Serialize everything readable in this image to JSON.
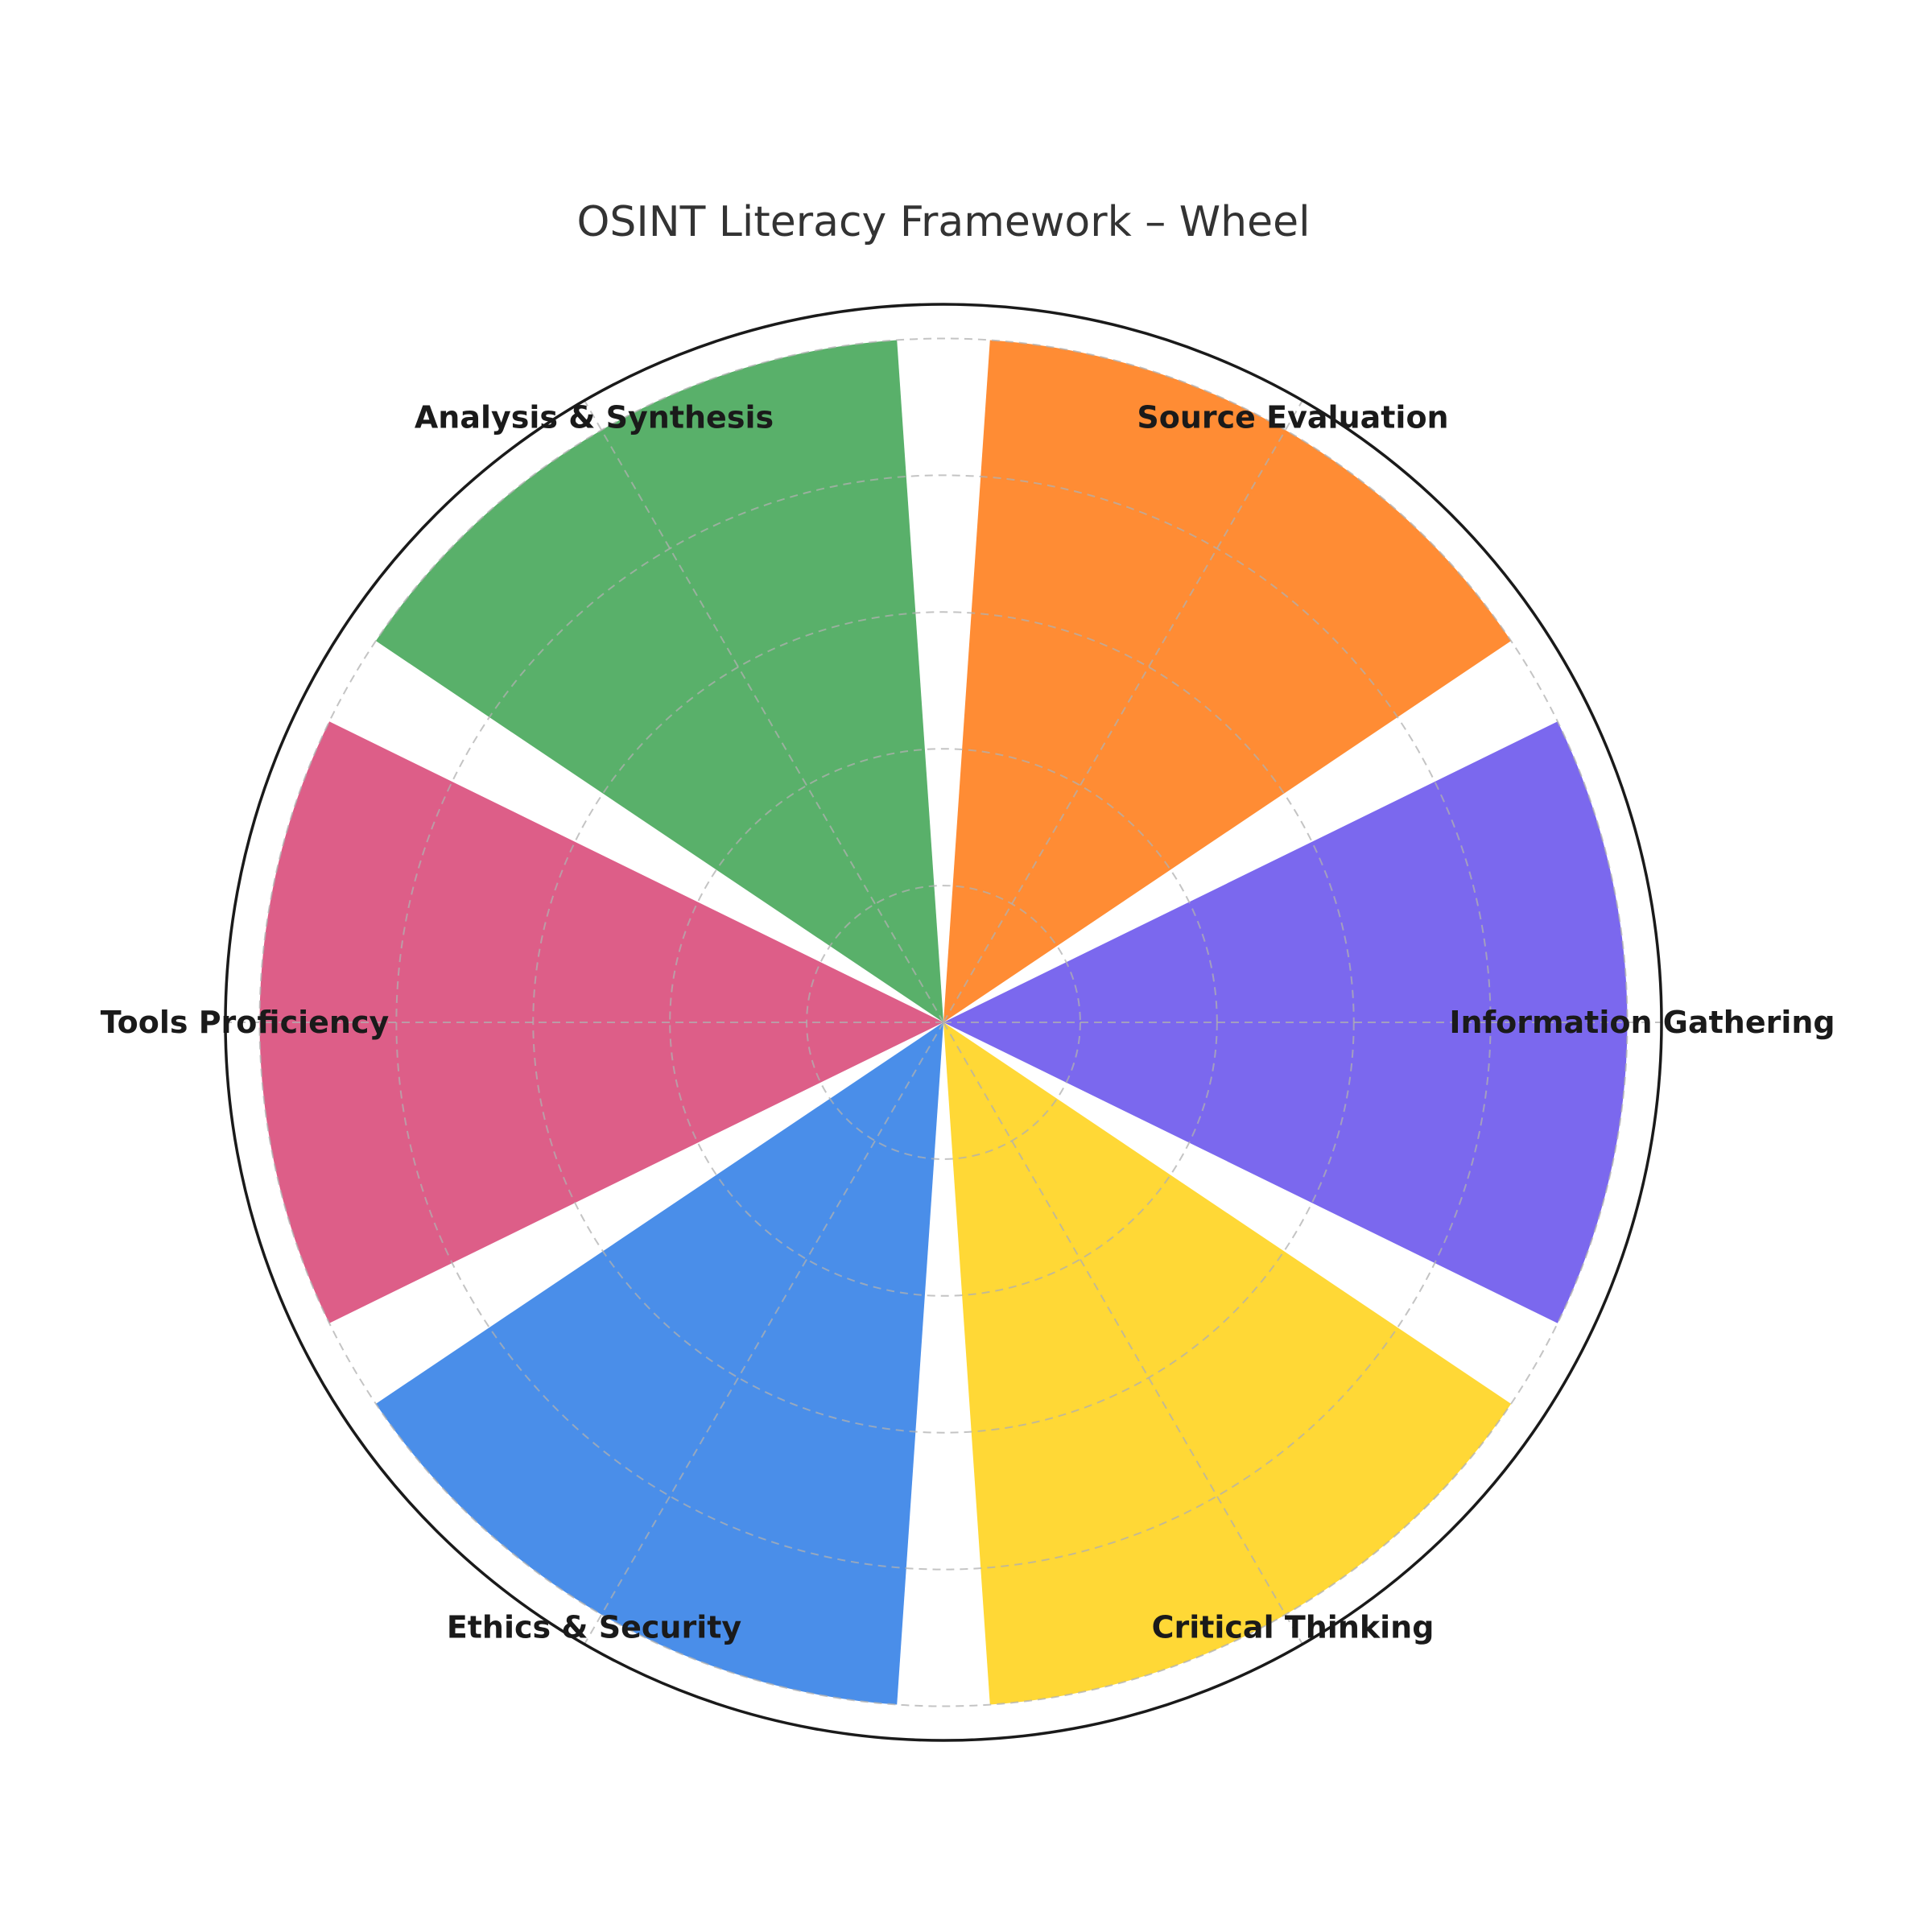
{
  "chart_data": {
    "type": "polar-bar",
    "title": "OSINT Literacy Framework – Wheel",
    "categories": [
      "Information Gathering",
      "Source Evaluation",
      "Analysis & Synthesis",
      "Tools Proficiency",
      "Ethics & Security",
      "Critical Thinking"
    ],
    "values": [
      1,
      1,
      1,
      1,
      1,
      1
    ],
    "colors": [
      "#7B68EE",
      "#FF8C34",
      "#59B06A",
      "#DD5E88",
      "#4A8EE9",
      "#FFD836"
    ],
    "rlim": [
      0,
      1.05
    ],
    "radial_grid": [
      0.2,
      0.4,
      0.6,
      0.8,
      1.0
    ],
    "grid": true,
    "start_angle_deg": 0,
    "direction": "counterclockwise"
  }
}
